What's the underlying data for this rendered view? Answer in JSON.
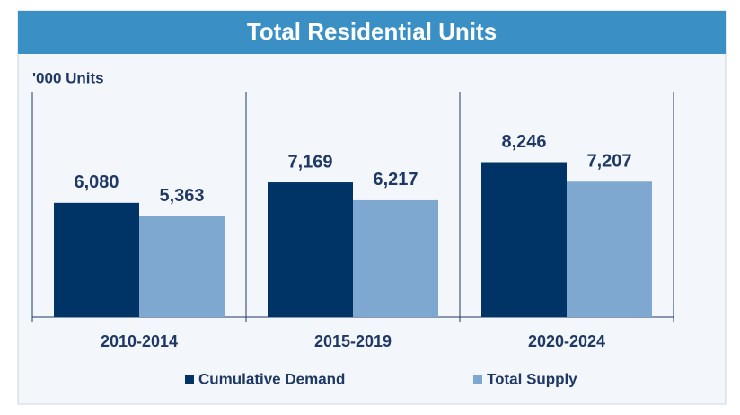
{
  "chart_data": {
    "type": "bar",
    "title": "Total Residential Units",
    "y_label": "'000 Units",
    "categories": [
      "2010-2014",
      "2015-2019",
      "2020-2024"
    ],
    "series": [
      {
        "name": "Cumulative Demand",
        "color": "#003366",
        "values": [
          6080,
          7169,
          8246
        ],
        "value_labels": [
          "6,080",
          "7,169",
          "8,246"
        ]
      },
      {
        "name": "Total Supply",
        "color": "#7fa8d0",
        "values": [
          5363,
          6217,
          7207
        ],
        "value_labels": [
          "5,363",
          "6,217",
          "7,207"
        ]
      }
    ],
    "ylim": [
      0,
      12000
    ],
    "legend": "bottom"
  }
}
